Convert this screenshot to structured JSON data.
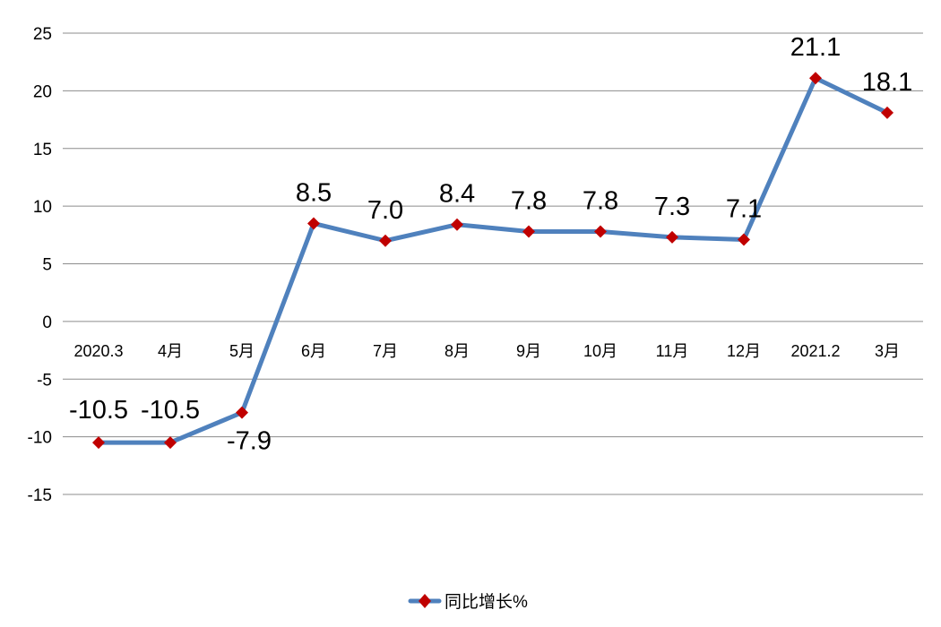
{
  "chart_data": {
    "type": "line",
    "title": "",
    "xlabel": "",
    "ylabel": "",
    "categories": [
      "2020.3",
      "4月",
      "5月",
      "6月",
      "7月",
      "8月",
      "9月",
      "10月",
      "11月",
      "12月",
      "2021.2",
      "3月"
    ],
    "series": [
      {
        "name": "同比增长%",
        "values": [
          -10.5,
          -10.5,
          -7.9,
          8.5,
          7.0,
          8.4,
          7.8,
          7.8,
          7.3,
          7.1,
          21.1,
          18.1
        ],
        "labels": [
          "-10.5",
          "-10.5",
          "-7.9",
          "8.5",
          "7.0",
          "8.4",
          "7.8",
          "7.8",
          "7.3",
          "7.1",
          "21.1",
          "18.1"
        ],
        "line_color": "#4f81bd",
        "marker_color": "#c00000",
        "marker": "diamond"
      }
    ],
    "y_ticks": [
      25,
      20,
      15,
      10,
      5,
      0,
      -5,
      -10,
      -15
    ],
    "ylim": [
      -15,
      25
    ],
    "grid": true,
    "legend_position": "bottom"
  }
}
